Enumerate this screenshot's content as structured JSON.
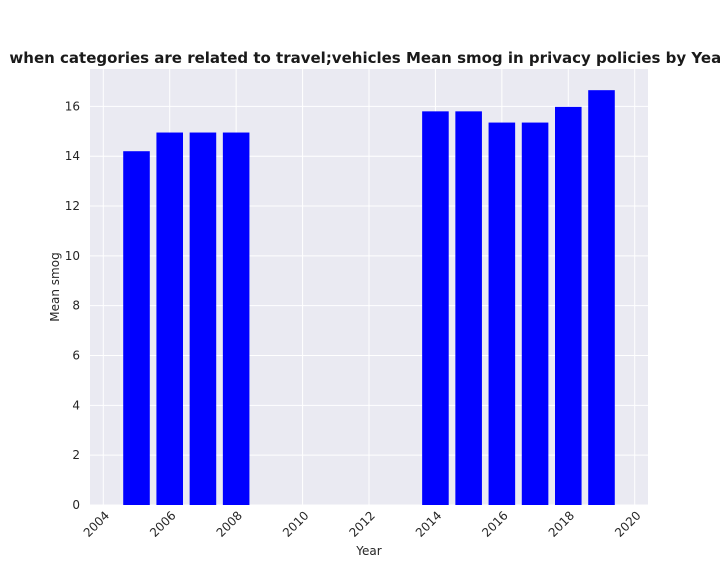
{
  "chart_data": {
    "type": "bar",
    "title": "when categories are related to travel;vehicles Mean smog in privacy policies by Year",
    "xlabel": "Year",
    "ylabel": "Mean smog",
    "x": [
      2005,
      2006,
      2007,
      2008,
      2014,
      2015,
      2016,
      2017,
      2018,
      2019
    ],
    "values": [
      14.2,
      14.95,
      14.95,
      14.95,
      15.8,
      15.8,
      15.35,
      15.35,
      15.98,
      16.65
    ],
    "xlim": [
      2003.6,
      2020.4
    ],
    "ylim": [
      0,
      17.5
    ],
    "xticks": [
      2004,
      2006,
      2008,
      2010,
      2012,
      2014,
      2016,
      2018,
      2020
    ],
    "yticks": [
      0,
      2,
      4,
      6,
      8,
      10,
      12,
      14,
      16
    ],
    "bar_width": 0.8,
    "bar_color": "#0000ff",
    "background_color": "#eaeaf2",
    "grid": true
  }
}
